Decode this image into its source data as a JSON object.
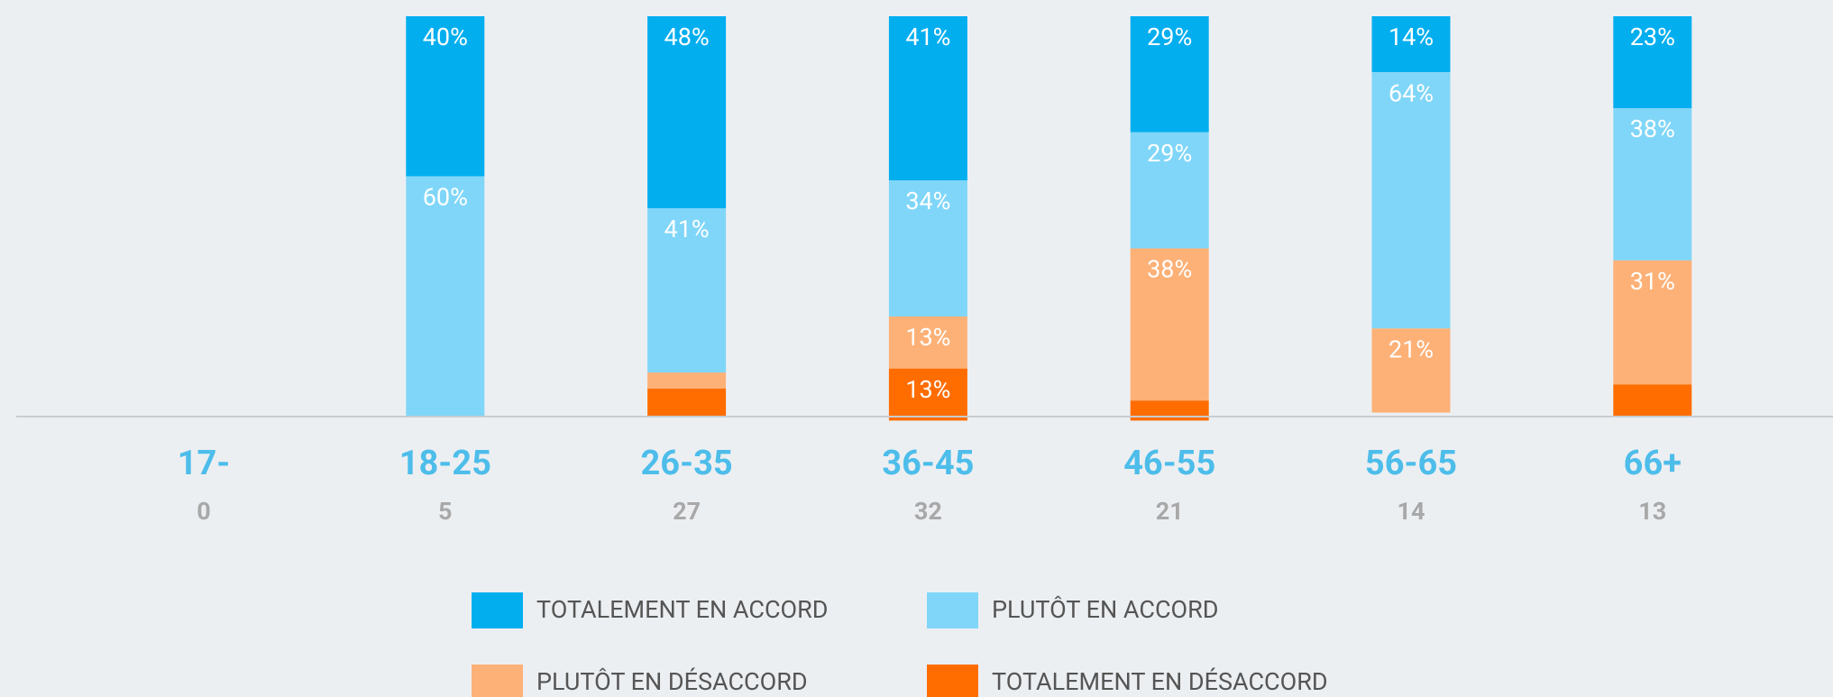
{
  "chart_data": {
    "type": "bar",
    "stacked": true,
    "categories": [
      "17-",
      "18-25",
      "26-35",
      "36-45",
      "46-55",
      "56-65",
      "66+"
    ],
    "counts": [
      0,
      5,
      27,
      32,
      21,
      14,
      13
    ],
    "ylim": [
      0,
      100
    ],
    "series": [
      {
        "name": "TOTALEMENT EN ACCORD",
        "color": "#03aeef",
        "values": [
          0,
          40,
          48,
          41,
          29,
          14,
          23
        ],
        "value_labels": [
          null,
          "40%",
          "48%",
          "41%",
          "29%",
          "14%",
          "23%"
        ]
      },
      {
        "name": "PLUTÔT EN ACCORD",
        "color": "#80d6f8",
        "values": [
          0,
          60,
          41,
          34,
          29,
          64,
          38
        ],
        "value_labels": [
          null,
          "60%",
          "41%",
          "34%",
          "29%",
          "64%",
          "38%"
        ]
      },
      {
        "name": "PLUTÔT EN DÉSACCORD",
        "color": "#fdb177",
        "values": [
          0,
          0,
          4,
          13,
          38,
          21,
          31
        ],
        "value_labels": [
          null,
          null,
          null,
          "13%",
          "38%",
          "21%",
          "31%"
        ]
      },
      {
        "name": "TOTALEMENT EN DÉSACCORD",
        "color": "#ff6d00",
        "values": [
          0,
          0,
          7,
          13,
          5,
          0,
          8
        ],
        "value_labels": [
          null,
          null,
          null,
          "13%",
          null,
          null,
          null
        ]
      }
    ]
  }
}
